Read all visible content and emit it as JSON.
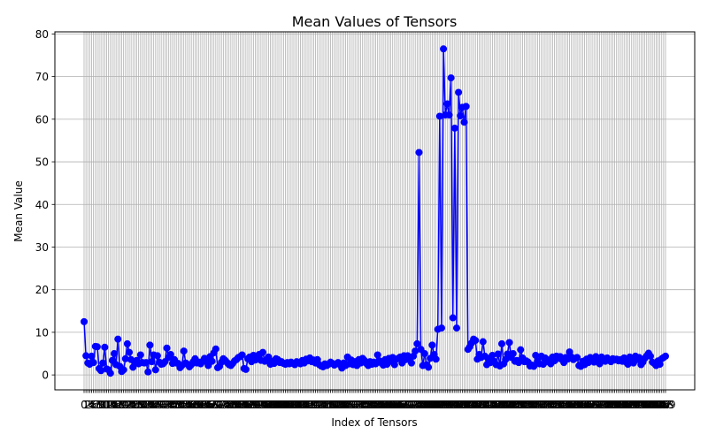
{
  "chart_data": {
    "type": "line",
    "title": "Mean Values of Tensors",
    "xlabel": "Index of Tensors",
    "ylabel": "Mean Value",
    "ylim": [
      -3.5,
      80.5
    ],
    "yticks": [
      0,
      10,
      20,
      30,
      40,
      50,
      60,
      70,
      80
    ],
    "grid": true,
    "marker": "circle",
    "line_color": "#0000ff",
    "x_start": 0,
    "x_step": 1,
    "values": [
      12.5,
      4.5,
      2.8,
      2.5,
      4.4,
      2.9,
      6.7,
      6.6,
      1.5,
      1.0,
      2.8,
      6.5,
      1.4,
      1.2,
      0.4,
      3.4,
      5.0,
      2.4,
      8.4,
      2.0,
      0.8,
      1.2,
      3.8,
      7.3,
      5.3,
      3.6,
      1.8,
      3.0,
      3.4,
      2.6,
      4.7,
      2.9,
      2.8,
      2.9,
      0.7,
      7.0,
      3.1,
      4.7,
      1.2,
      4.5,
      3.0,
      2.5,
      2.6,
      3.1,
      6.3,
      4.1,
      4.8,
      2.7,
      3.6,
      2.8,
      2.7,
      1.7,
      2.2,
      5.6,
      2.8,
      2.5,
      1.9,
      2.4,
      3.1,
      3.8,
      2.8,
      3.0,
      2.6,
      3.2,
      3.9,
      3.1,
      2.2,
      4.3,
      3.2,
      5.2,
      6.1,
      1.7,
      2.0,
      3.0,
      3.8,
      3.4,
      2.9,
      2.4,
      2.2,
      2.7,
      3.3,
      3.6,
      4.1,
      4.3,
      4.7,
      1.5,
      1.3,
      3.8,
      4.2,
      3.1,
      4.6,
      3.5,
      3.9,
      4.8,
      3.4,
      5.3,
      3.2,
      3.6,
      4.2,
      2.5,
      3.2,
      2.7,
      3.8,
      3.6,
      2.9,
      3.1,
      2.7,
      2.5,
      2.9,
      2.6,
      3.0,
      2.7,
      2.4,
      3.1,
      2.9,
      2.6,
      3.4,
      2.8,
      3.7,
      3.3,
      4.0,
      3.1,
      3.5,
      2.8,
      3.6,
      2.4,
      2.1,
      1.9,
      2.6,
      2.2,
      2.5,
      3.0,
      2.7,
      2.3,
      2.6,
      2.9,
      2.4,
      1.6,
      2.8,
      2.2,
      4.2,
      2.6,
      3.5,
      2.4,
      3.1,
      2.2,
      3.6,
      2.8,
      3.9,
      3.4,
      2.7,
      2.2,
      3.1,
      2.5,
      3.0,
      2.6,
      4.7,
      3.3,
      2.8,
      2.3,
      3.6,
      2.5,
      3.9,
      3.2,
      4.1,
      2.4,
      3.7,
      3.9,
      4.2,
      2.8,
      4.5,
      3.6,
      4.5,
      4.0,
      2.8,
      4.4,
      5.6,
      7.3,
      52.2,
      6.0,
      2.2,
      5.0,
      2.4,
      1.8,
      3.9,
      7.0,
      4.8,
      3.7,
      10.7,
      60.7,
      11.0,
      76.5,
      61.0,
      63.6,
      61.0,
      69.7,
      13.4,
      57.9,
      11.0,
      66.3,
      60.8,
      62.8,
      59.3,
      63.0,
      6.0,
      6.6,
      7.5,
      8.4,
      8.1,
      3.7,
      4.8,
      4.1,
      7.8,
      4.4,
      2.4,
      3.9,
      2.9,
      4.6,
      3.2,
      2.4,
      4.9,
      2.1,
      7.3,
      2.6,
      3.6,
      4.9,
      7.6,
      4.1,
      5.0,
      3.2,
      3.4,
      2.9,
      5.9,
      4.0,
      3.1,
      3.3,
      3.0,
      2.1,
      2.3,
      2.0,
      4.6,
      3.2,
      2.6,
      4.4,
      2.5,
      4.0,
      3.1,
      3.5,
      2.6,
      4.2,
      3.3,
      4.4,
      3.9,
      4.3,
      3.6,
      2.9,
      4.1,
      3.7,
      5.4,
      4.2,
      3.6,
      3.9,
      4.1,
      2.2,
      2.0,
      3.2,
      2.4,
      3.7,
      2.9,
      4.1,
      3.5,
      3.0,
      4.3,
      3.8,
      2.6,
      4.2,
      3.6,
      3.2,
      4.0,
      3.4,
      3.1,
      3.8,
      3.5,
      3.7,
      3.3,
      3.6,
      3.2,
      4.0,
      3.0,
      2.5,
      4.2,
      3.4,
      2.8,
      4.4,
      3.6,
      4.1,
      2.4,
      3.0,
      3.9,
      4.5,
      5.1,
      4.4,
      3.0,
      2.7,
      2.2,
      3.3,
      2.5,
      3.8,
      4.1,
      4.4
    ]
  }
}
